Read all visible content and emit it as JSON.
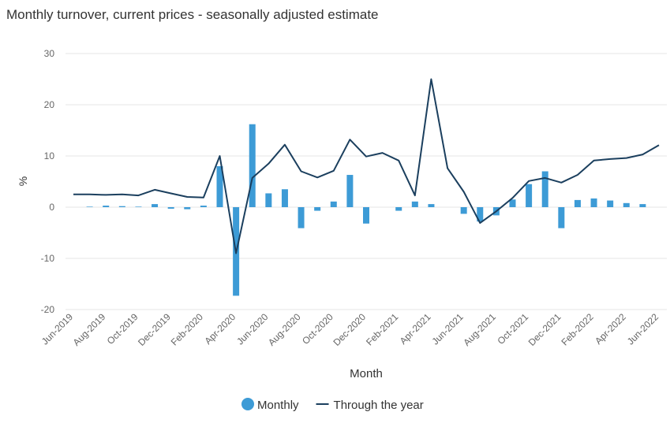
{
  "chart_data": {
    "type": "bar-line",
    "title": "Monthly turnover, current prices - seasonally adjusted estimate",
    "x_label": "Month",
    "y_label": "%",
    "categories": [
      "Jun-2019",
      null,
      "Aug-2019",
      null,
      "Oct-2019",
      null,
      "Dec-2019",
      null,
      "Feb-2020",
      null,
      "Apr-2020",
      null,
      "Jun-2020",
      null,
      "Aug-2020",
      null,
      "Oct-2020",
      null,
      "Dec-2020",
      null,
      "Feb-2021",
      null,
      "Apr-2021",
      null,
      "Jun-2021",
      null,
      "Aug-2021",
      null,
      "Oct-2021",
      null,
      "Dec-2021",
      null,
      "Feb-2022",
      null,
      "Apr-2022",
      null,
      "Jun-2022"
    ],
    "series": [
      {
        "name": "Monthly",
        "type": "bar",
        "color": "#3d9bd6",
        "values": [
          0.0,
          0.1,
          0.3,
          0.2,
          0.1,
          0.6,
          -0.3,
          -0.4,
          0.3,
          8.0,
          -17.3,
          16.2,
          2.7,
          3.5,
          -4.1,
          -0.7,
          1.1,
          6.3,
          -3.2,
          0.0,
          -0.7,
          1.1,
          0.6,
          0.0,
          -1.3,
          -2.8,
          -1.6,
          1.5,
          4.5,
          7.0,
          -4.1,
          1.4,
          1.7,
          1.3,
          0.8,
          0.6,
          0.0
        ]
      },
      {
        "name": "Through the year",
        "type": "line",
        "color": "#1b3f5e",
        "values": [
          2.5,
          2.5,
          2.4,
          2.5,
          2.3,
          3.4,
          2.7,
          2.0,
          1.9,
          10.0,
          -9.0,
          5.7,
          8.5,
          12.2,
          7.0,
          5.8,
          7.1,
          13.2,
          9.9,
          10.6,
          9.1,
          2.3,
          25.0,
          7.6,
          3.0,
          -3.1,
          -0.8,
          1.8,
          5.1,
          5.7,
          4.8,
          6.3,
          9.1,
          9.4,
          9.6,
          10.3,
          12.1
        ]
      }
    ],
    "ylim": [
      -20,
      30
    ],
    "yticks": [
      -20,
      -10,
      0,
      10,
      20,
      30
    ],
    "grid": true,
    "legend": "bottom"
  }
}
